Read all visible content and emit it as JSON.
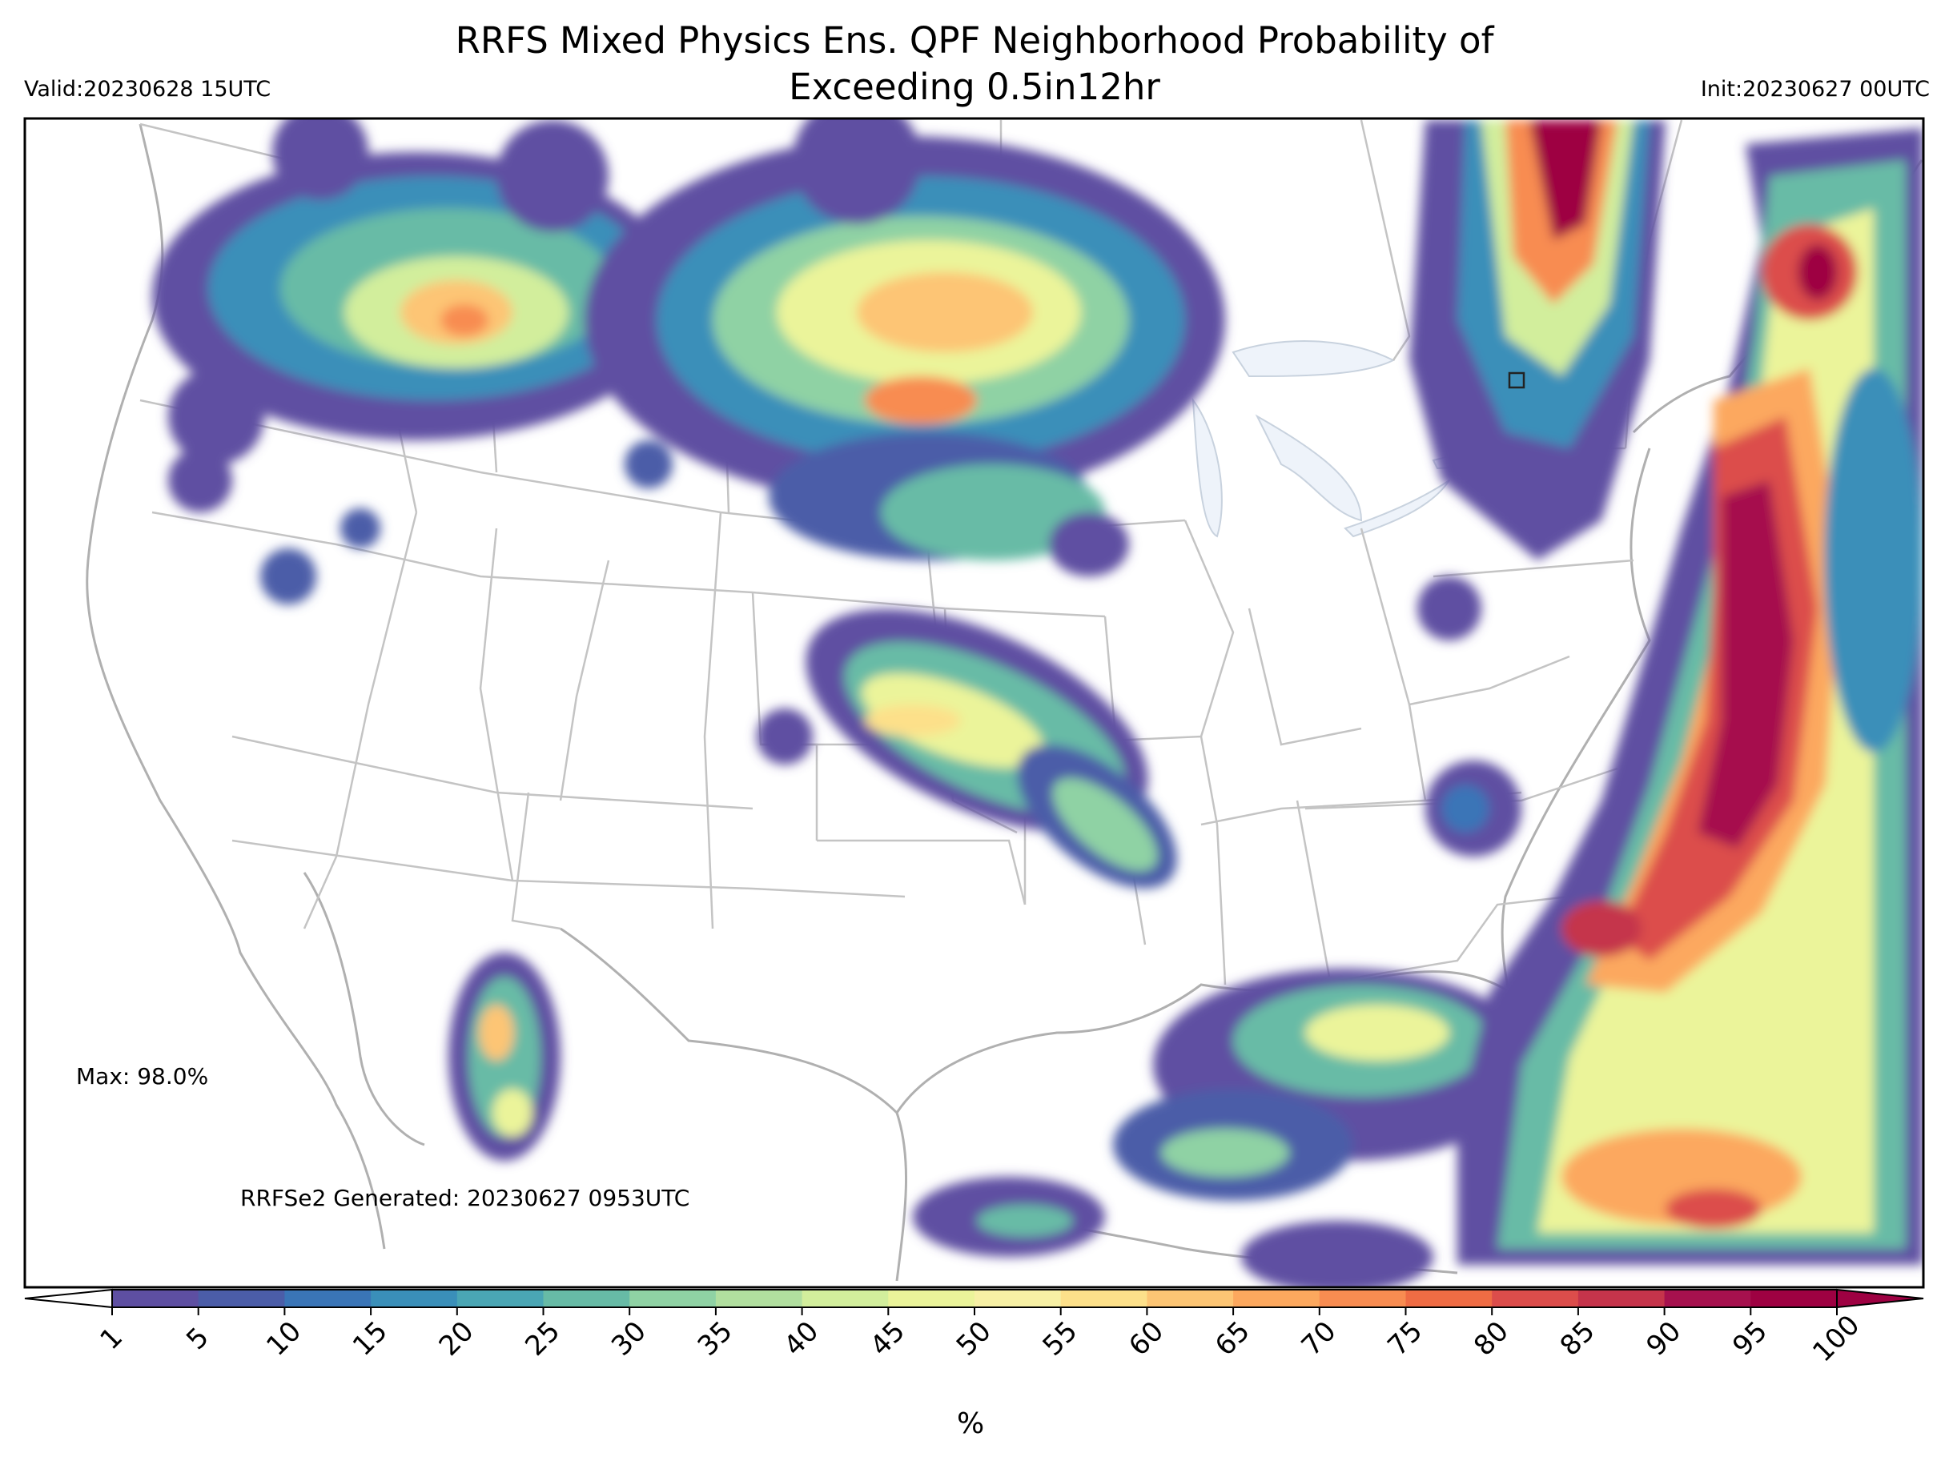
{
  "title_line1": "RRFS Mixed Physics Ens. QPF Neighborhood Probability of",
  "title_line2": "Exceeding 0.5in12hr",
  "valid": "Valid:20230628 15UTC",
  "init": "Init:20230627 00UTC",
  "max_label": "Max: 98.0%",
  "generated": "RRFSe2 Generated: 20230627 0953UTC",
  "colorbar": {
    "unit": "%",
    "ticks": [
      "1",
      "5",
      "10",
      "15",
      "20",
      "25",
      "30",
      "35",
      "40",
      "45",
      "50",
      "55",
      "60",
      "65",
      "70",
      "75",
      "80",
      "85",
      "90",
      "95",
      "100"
    ],
    "colors": [
      "#5e4fa2",
      "#4b5da8",
      "#3a75b7",
      "#3a8fb9",
      "#4aa6b4",
      "#67bba6",
      "#8fd2a4",
      "#b1df9f",
      "#d2ee9c",
      "#ebf49a",
      "#f7f0a5",
      "#fde08a",
      "#fdc574",
      "#fca85e",
      "#f88c51",
      "#ef6c44",
      "#dc4d4b",
      "#c5344b",
      "#a6114e",
      "#9e0142"
    ],
    "under_color": "#ffffff",
    "over_color": "#9e0142"
  }
}
